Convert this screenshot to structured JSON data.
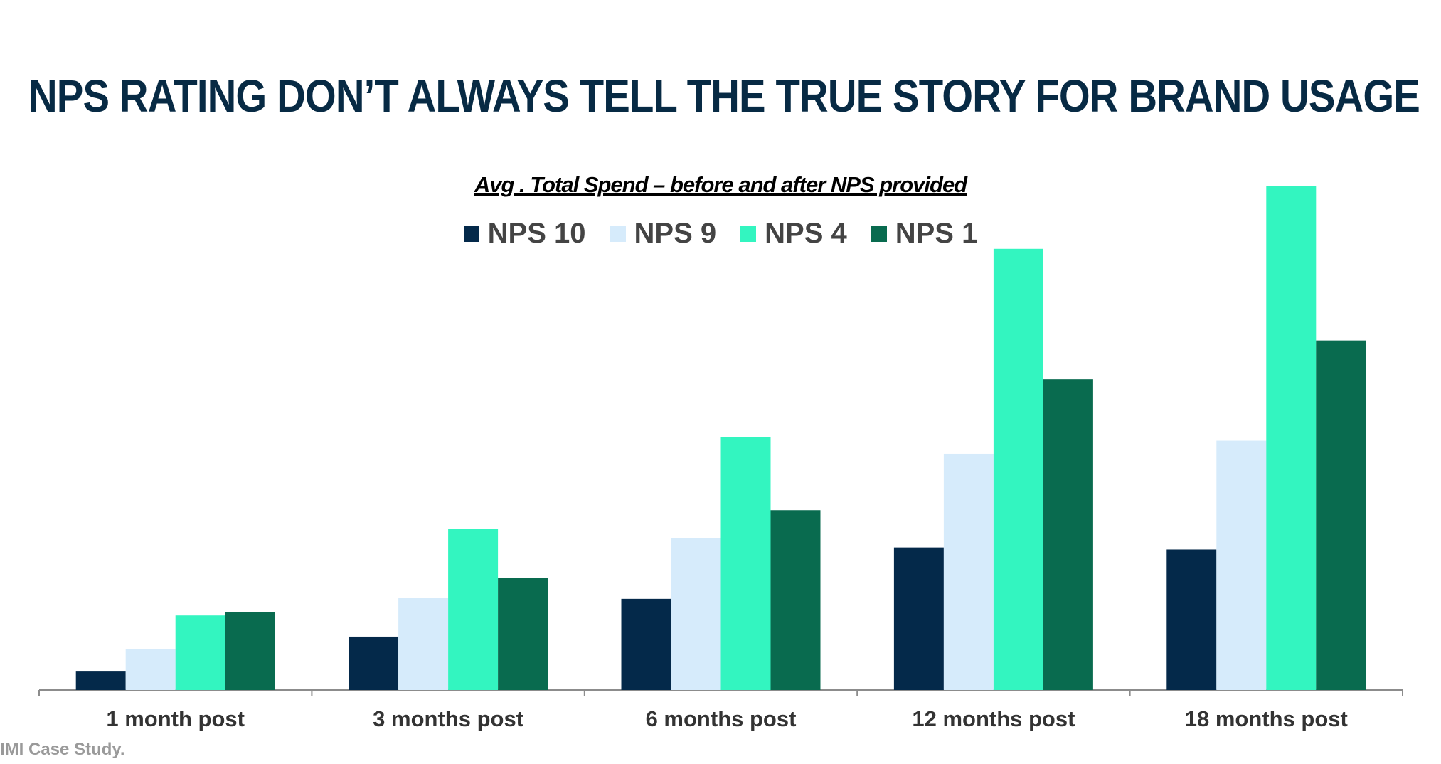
{
  "title": "NPS RATING DON’T ALWAYS TELL THE TRUE STORY FOR BRAND USAGE",
  "footnote": "IMI Case Study.",
  "chart_data": {
    "type": "bar",
    "title": "Avg . Total Spend – before and after NPS provided",
    "xlabel": "",
    "ylabel": "",
    "ylim": [
      0,
      100
    ],
    "grid": false,
    "legend_position": "top-center",
    "categories": [
      "1 month post",
      "3 months post",
      "6 months post",
      "12 months post",
      "18 months post"
    ],
    "series": [
      {
        "name": "NPS 10",
        "color": "#04294a",
        "values": [
          3.8,
          10.6,
          18.1,
          28.3,
          27.9
        ]
      },
      {
        "name": "NPS 9",
        "color": "#d6ebfb",
        "values": [
          8.1,
          18.3,
          30.1,
          46.9,
          49.5
        ]
      },
      {
        "name": "NPS 4",
        "color": "#33f5c0",
        "values": [
          14.8,
          32.0,
          50.2,
          87.6,
          100.0
        ]
      },
      {
        "name": "NPS 1",
        "color": "#096b4f",
        "values": [
          15.4,
          22.3,
          35.7,
          61.7,
          69.4
        ]
      }
    ]
  }
}
